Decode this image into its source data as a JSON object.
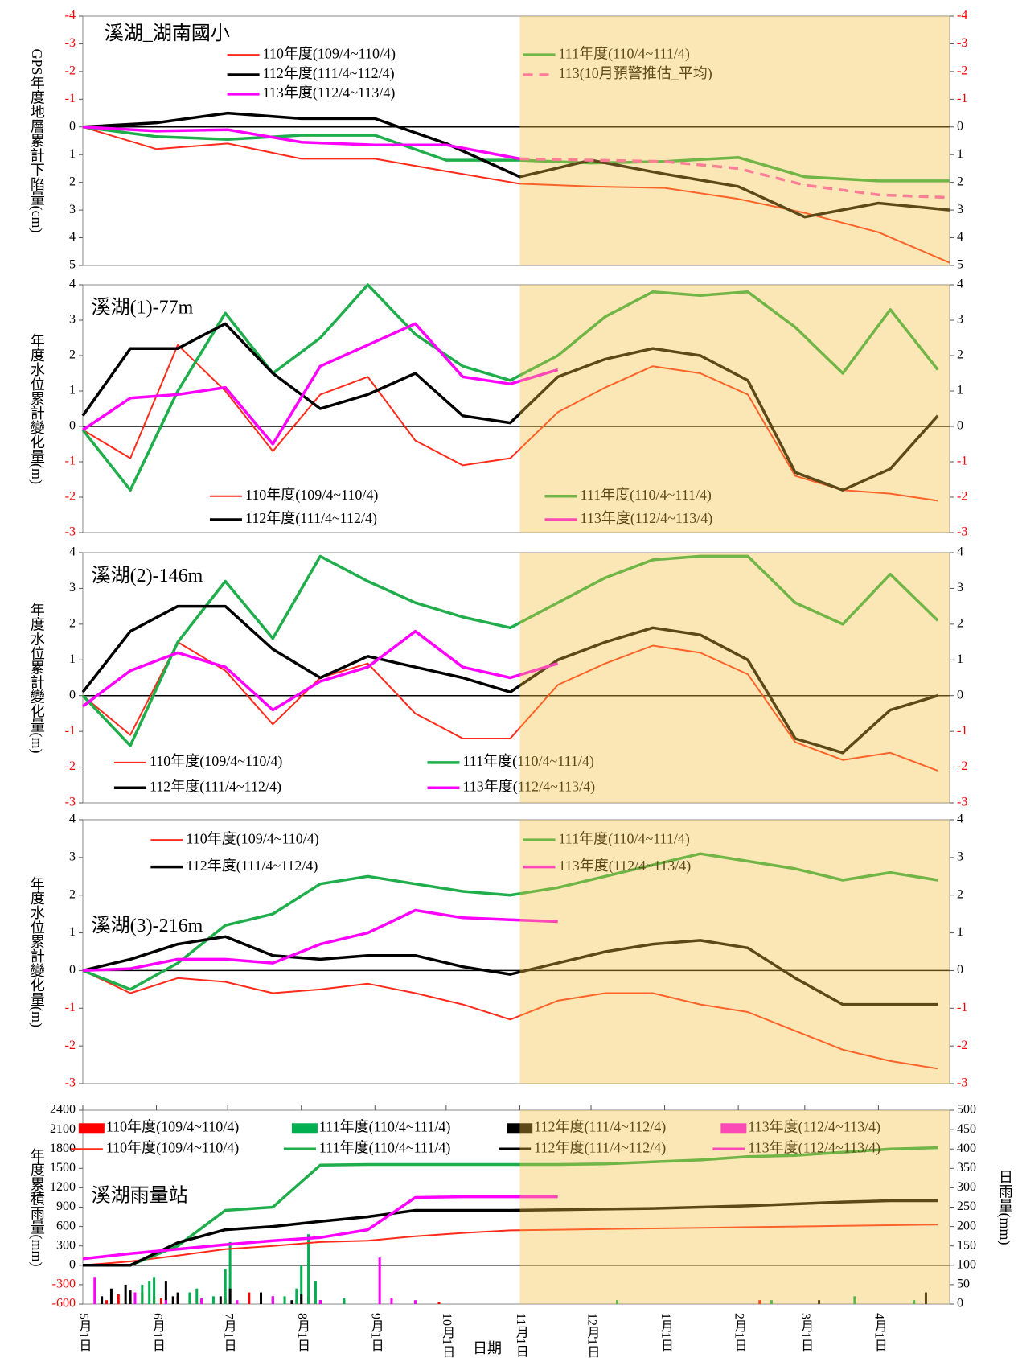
{
  "chart_data": [
    {
      "type": "line",
      "title": "溪湖_湖南國小",
      "ylabel": "GPS年度地層累計下陷量(cm)",
      "x": [
        0,
        31,
        61,
        92,
        123,
        153,
        184,
        214,
        245,
        276,
        304,
        335,
        365
      ],
      "xlim": [
        0,
        365
      ],
      "ylim": [
        5,
        -4
      ],
      "yticks": [
        -4,
        -3,
        -2,
        -1,
        0,
        1,
        2,
        3,
        4,
        5
      ],
      "y2lim": [
        5,
        -4
      ],
      "y2ticks": [
        -4,
        -3,
        -2,
        -1,
        0,
        1,
        2,
        3,
        4,
        5
      ],
      "negative_tick_color": "#ff0000",
      "zero_line": true,
      "highlight_xrange": [
        184,
        365
      ],
      "highlight_color": "#f5c040",
      "series": [
        {
          "name": "110年度(109/4~110/4)",
          "color": "#ff2a1a",
          "line_width": 2,
          "values": [
            0,
            0.8,
            0.6,
            1.15,
            1.15,
            1.6,
            2.05,
            2.15,
            2.2,
            2.6,
            3.1,
            3.8,
            4.9
          ]
        },
        {
          "name": "111年度(110/4~111/4)",
          "color": "#1fae4b",
          "line_width": 3.5,
          "values": [
            0,
            0.35,
            0.45,
            0.3,
            0.3,
            1.2,
            1.2,
            1.3,
            1.25,
            1.1,
            1.8,
            1.95,
            1.95
          ]
        },
        {
          "name": "112年度(111/4~112/4)",
          "color": "#000000",
          "line_width": 3.5,
          "values": [
            0,
            -0.15,
            -0.5,
            -0.3,
            -0.3,
            0.6,
            1.8,
            1.2,
            1.7,
            2.15,
            3.25,
            2.75,
            3.0
          ]
        },
        {
          "name": "113年度(112/4~113/4)",
          "color": "#ff00ff",
          "line_width": 3.5,
          "values": [
            0,
            0.15,
            0.1,
            0.55,
            0.65,
            0.65,
            1.15,
            null,
            null,
            null,
            null,
            null,
            null
          ]
        },
        {
          "name": "113(10月預警推估_平均)",
          "color": "#ff55cc",
          "line_width": 3.5,
          "dash": true,
          "values": [
            null,
            null,
            null,
            null,
            null,
            null,
            1.15,
            1.2,
            1.25,
            1.5,
            2.1,
            2.45,
            2.55
          ]
        }
      ]
    },
    {
      "type": "line",
      "title": "溪湖(1)-77m",
      "ylabel": "年度水位累計變化量(m)",
      "x": [
        0,
        20,
        40,
        60,
        80,
        100,
        120,
        140,
        160,
        180,
        200,
        220,
        240,
        260,
        280,
        300,
        320,
        340,
        360
      ],
      "xlim": [
        0,
        365
      ],
      "ylim": [
        -3,
        4
      ],
      "yticks": [
        -3,
        -2,
        -1,
        0,
        1,
        2,
        3,
        4
      ],
      "y2lim": [
        -3,
        4
      ],
      "y2ticks": [
        -3,
        -2,
        -1,
        0,
        1,
        2,
        3,
        4
      ],
      "negative_tick_color": "#ff0000",
      "zero_line": true,
      "highlight_xrange": [
        184,
        365
      ],
      "highlight_color": "#f5c040",
      "series": [
        {
          "name": "110年度(109/4~110/4)",
          "color": "#ff2a1a",
          "line_width": 2,
          "values": [
            -0.1,
            -0.9,
            2.3,
            1.0,
            -0.7,
            0.9,
            1.4,
            -0.4,
            -1.1,
            -0.9,
            0.4,
            1.1,
            1.7,
            1.5,
            0.9,
            -1.4,
            -1.8,
            -1.9,
            -2.1
          ]
        },
        {
          "name": "111年度(110/4~111/4)",
          "color": "#1fae4b",
          "line_width": 3.5,
          "values": [
            -0.1,
            -1.8,
            1.0,
            3.2,
            1.5,
            2.5,
            4.0,
            2.6,
            1.7,
            1.3,
            2.0,
            3.1,
            3.8,
            3.7,
            3.8,
            2.8,
            1.5,
            3.3,
            1.6
          ]
        },
        {
          "name": "112年度(111/4~112/4)",
          "color": "#000000",
          "line_width": 3.5,
          "values": [
            0.3,
            2.2,
            2.2,
            2.9,
            1.5,
            0.5,
            0.9,
            1.5,
            0.3,
            0.1,
            1.4,
            1.9,
            2.2,
            2.0,
            1.3,
            -1.3,
            -1.8,
            -1.2,
            0.3
          ]
        },
        {
          "name": "113年度(112/4~113/4)",
          "color": "#ff00ff",
          "line_width": 3.5,
          "values": [
            -0.1,
            0.8,
            0.9,
            1.1,
            -0.5,
            1.7,
            2.3,
            2.9,
            1.4,
            1.2,
            1.6,
            null,
            null,
            null,
            null,
            null,
            null,
            null,
            null
          ]
        }
      ]
    },
    {
      "type": "line",
      "title": "溪湖(2)-146m",
      "ylabel": "年度水位累計變化量(m)",
      "x": [
        0,
        20,
        40,
        60,
        80,
        100,
        120,
        140,
        160,
        180,
        200,
        220,
        240,
        260,
        280,
        300,
        320,
        340,
        360
      ],
      "xlim": [
        0,
        365
      ],
      "ylim": [
        -3,
        4
      ],
      "yticks": [
        -3,
        -2,
        -1,
        0,
        1,
        2,
        3,
        4
      ],
      "y2lim": [
        -3,
        4
      ],
      "y2ticks": [
        -3,
        -2,
        -1,
        0,
        1,
        2,
        3,
        4
      ],
      "negative_tick_color": "#ff0000",
      "zero_line": true,
      "highlight_xrange": [
        184,
        365
      ],
      "highlight_color": "#f5c040",
      "series": [
        {
          "name": "110年度(109/4~110/4)",
          "color": "#ff2a1a",
          "line_width": 2,
          "values": [
            0,
            -1.1,
            1.5,
            0.7,
            -0.8,
            0.5,
            0.9,
            -0.5,
            -1.2,
            -1.2,
            0.3,
            0.9,
            1.4,
            1.2,
            0.6,
            -1.3,
            -1.8,
            -1.6,
            -2.1
          ]
        },
        {
          "name": "111年度(110/4~111/4)",
          "color": "#1fae4b",
          "line_width": 3.5,
          "values": [
            0,
            -1.4,
            1.5,
            3.2,
            1.6,
            3.9,
            3.2,
            2.6,
            2.2,
            1.9,
            2.6,
            3.3,
            3.8,
            3.9,
            3.9,
            2.6,
            2.0,
            3.4,
            2.1
          ]
        },
        {
          "name": "112年度(111/4~112/4)",
          "color": "#000000",
          "line_width": 3.5,
          "values": [
            0.1,
            1.8,
            2.5,
            2.5,
            1.3,
            0.5,
            1.1,
            0.8,
            0.5,
            0.1,
            1.0,
            1.5,
            1.9,
            1.7,
            1.0,
            -1.2,
            -1.6,
            -0.4,
            0.0
          ]
        },
        {
          "name": "113年度(112/4~113/4)",
          "color": "#ff00ff",
          "line_width": 3.5,
          "values": [
            -0.3,
            0.7,
            1.2,
            0.8,
            -0.4,
            0.4,
            0.8,
            1.8,
            0.8,
            0.5,
            0.9,
            null,
            null,
            null,
            null,
            null,
            null,
            null,
            null
          ]
        }
      ]
    },
    {
      "type": "line",
      "title": "溪湖(3)-216m",
      "ylabel": "年度水位累計變化量(m)",
      "x": [
        0,
        20,
        40,
        60,
        80,
        100,
        120,
        140,
        160,
        180,
        200,
        220,
        240,
        260,
        280,
        300,
        320,
        340,
        360
      ],
      "xlim": [
        0,
        365
      ],
      "ylim": [
        -3,
        4
      ],
      "yticks": [
        -3,
        -2,
        -1,
        0,
        1,
        2,
        3,
        4
      ],
      "y2lim": [
        -3,
        4
      ],
      "y2ticks": [
        -3,
        -2,
        -1,
        0,
        1,
        2,
        3,
        4
      ],
      "negative_tick_color": "#ff0000",
      "zero_line": true,
      "highlight_xrange": [
        184,
        365
      ],
      "highlight_color": "#f5c040",
      "series": [
        {
          "name": "110年度(109/4~110/4)",
          "color": "#ff2a1a",
          "line_width": 2,
          "values": [
            0,
            -0.6,
            -0.2,
            -0.3,
            -0.6,
            -0.5,
            -0.35,
            -0.6,
            -0.9,
            -1.3,
            -0.8,
            -0.6,
            -0.6,
            -0.9,
            -1.1,
            -1.6,
            -2.1,
            -2.4,
            -2.6
          ]
        },
        {
          "name": "111年度(110/4~111/4)",
          "color": "#1fae4b",
          "line_width": 3.5,
          "values": [
            0,
            -0.5,
            0.2,
            1.2,
            1.5,
            2.3,
            2.5,
            2.3,
            2.1,
            2.0,
            2.2,
            2.5,
            2.8,
            3.1,
            2.9,
            2.7,
            2.4,
            2.6,
            2.4
          ]
        },
        {
          "name": "112年度(111/4~112/4)",
          "color": "#000000",
          "line_width": 3.5,
          "values": [
            0,
            0.3,
            0.7,
            0.9,
            0.4,
            0.3,
            0.4,
            0.4,
            0.1,
            -0.1,
            0.2,
            0.5,
            0.7,
            0.8,
            0.6,
            -0.2,
            -0.9,
            -0.9,
            -0.9
          ]
        },
        {
          "name": "113年度(112/4~113/4)",
          "color": "#ff00ff",
          "line_width": 3.5,
          "values": [
            0,
            0.05,
            0.3,
            0.3,
            0.2,
            0.7,
            1.0,
            1.6,
            1.4,
            1.35,
            1.3,
            null,
            null,
            null,
            null,
            null,
            null,
            null,
            null
          ]
        }
      ]
    },
    {
      "type": "bar-line",
      "title": "溪湖雨量站",
      "ylabel": "年度累積雨量(mm)",
      "y2label": "日雨量(mm)",
      "xlabel": "日期",
      "x": [
        0,
        20,
        40,
        60,
        80,
        100,
        120,
        140,
        160,
        180,
        200,
        220,
        240,
        260,
        280,
        300,
        320,
        340,
        360
      ],
      "xlim": [
        0,
        365
      ],
      "xticks": [
        {
          "value": 0,
          "label": "5月1日"
        },
        {
          "value": 31,
          "label": "6月1日"
        },
        {
          "value": 61,
          "label": "7月1日"
        },
        {
          "value": 92,
          "label": "8月1日"
        },
        {
          "value": 123,
          "label": "9月1日"
        },
        {
          "value": 153,
          "label": "10月1日"
        },
        {
          "value": 184,
          "label": "11月1日"
        },
        {
          "value": 214,
          "label": "12月1日"
        },
        {
          "value": 245,
          "label": "1月1日"
        },
        {
          "value": 276,
          "label": "2月1日"
        },
        {
          "value": 304,
          "label": "3月1日"
        },
        {
          "value": 335,
          "label": "4月1日"
        }
      ],
      "ylim": [
        -600,
        2400
      ],
      "yticks": [
        -600,
        -300,
        0,
        300,
        600,
        900,
        1200,
        1500,
        1800,
        2100,
        2400
      ],
      "y2lim": [
        0,
        500
      ],
      "y2ticks": [
        0,
        50,
        100,
        150,
        200,
        250,
        300,
        350,
        400,
        450,
        500
      ],
      "negative_tick_color": "#ff0000",
      "zero_line": true,
      "highlight_xrange": [
        184,
        365
      ],
      "highlight_color": "#f5c040",
      "series": [
        {
          "name": "110年度(109/4~110/4)",
          "type": "bar",
          "axis": "y2",
          "color": "#ff0000",
          "x": [
            10,
            15,
            20,
            25,
            30,
            33,
            40,
            50,
            60,
            70,
            75,
            90,
            95,
            110,
            150,
            285
          ],
          "values": [
            10,
            25,
            15,
            30,
            20,
            15,
            20,
            10,
            15,
            30,
            10,
            10,
            20,
            10,
            5,
            10
          ]
        },
        {
          "name": "111年度(110/4~111/4)",
          "type": "bar",
          "axis": "y2",
          "color": "#00b050",
          "x": [
            25,
            28,
            30,
            45,
            48,
            55,
            60,
            62,
            85,
            90,
            92,
            95,
            98,
            110,
            225,
            290,
            325,
            350
          ],
          "values": [
            50,
            60,
            70,
            30,
            40,
            20,
            90,
            160,
            20,
            40,
            100,
            180,
            60,
            15,
            10,
            10,
            20,
            10
          ]
        },
        {
          "name": "112年度(111/4~112/4)",
          "type": "bar",
          "axis": "y2",
          "color": "#000000",
          "x": [
            8,
            12,
            18,
            20,
            35,
            38,
            40,
            58,
            62,
            75,
            80,
            88,
            92,
            100,
            310,
            355
          ],
          "values": [
            20,
            40,
            50,
            35,
            60,
            20,
            30,
            20,
            40,
            30,
            20,
            10,
            25,
            10,
            10,
            30
          ]
        },
        {
          "name": "113年度(112/4~113/4)",
          "type": "bar",
          "axis": "y2",
          "color": "#ff00ff",
          "x": [
            5,
            22,
            35,
            50,
            65,
            80,
            100,
            125,
            130,
            140
          ],
          "values": [
            70,
            30,
            10,
            15,
            10,
            20,
            10,
            120,
            15,
            10
          ]
        },
        {
          "name": "110年度(109/4~110/4)",
          "type": "line",
          "color": "#ff2a1a",
          "line_width": 2,
          "values": [
            0,
            60,
            150,
            250,
            300,
            360,
            380,
            450,
            500,
            540,
            550,
            560,
            570,
            580,
            590,
            600,
            610,
            620,
            630
          ]
        },
        {
          "name": "111年度(110/4~111/4)",
          "type": "line",
          "color": "#1fae4b",
          "line_width": 3.5,
          "values": [
            0,
            0,
            300,
            850,
            900,
            1550,
            1560,
            1560,
            1560,
            1560,
            1560,
            1570,
            1600,
            1630,
            1680,
            1700,
            1750,
            1800,
            1820
          ]
        },
        {
          "name": "112年度(111/4~112/4)",
          "type": "line",
          "color": "#000000",
          "line_width": 3.5,
          "values": [
            0,
            0,
            350,
            550,
            600,
            680,
            750,
            850,
            850,
            850,
            860,
            870,
            880,
            900,
            920,
            950,
            980,
            1000,
            1000
          ]
        },
        {
          "name": "113年度(112/4~113/4)",
          "type": "line",
          "color": "#ff00ff",
          "line_width": 3.5,
          "values": [
            100,
            180,
            250,
            320,
            380,
            430,
            550,
            1050,
            1060,
            1060,
            1060,
            null,
            null,
            null,
            null,
            null,
            null,
            null,
            null
          ]
        }
      ]
    }
  ]
}
